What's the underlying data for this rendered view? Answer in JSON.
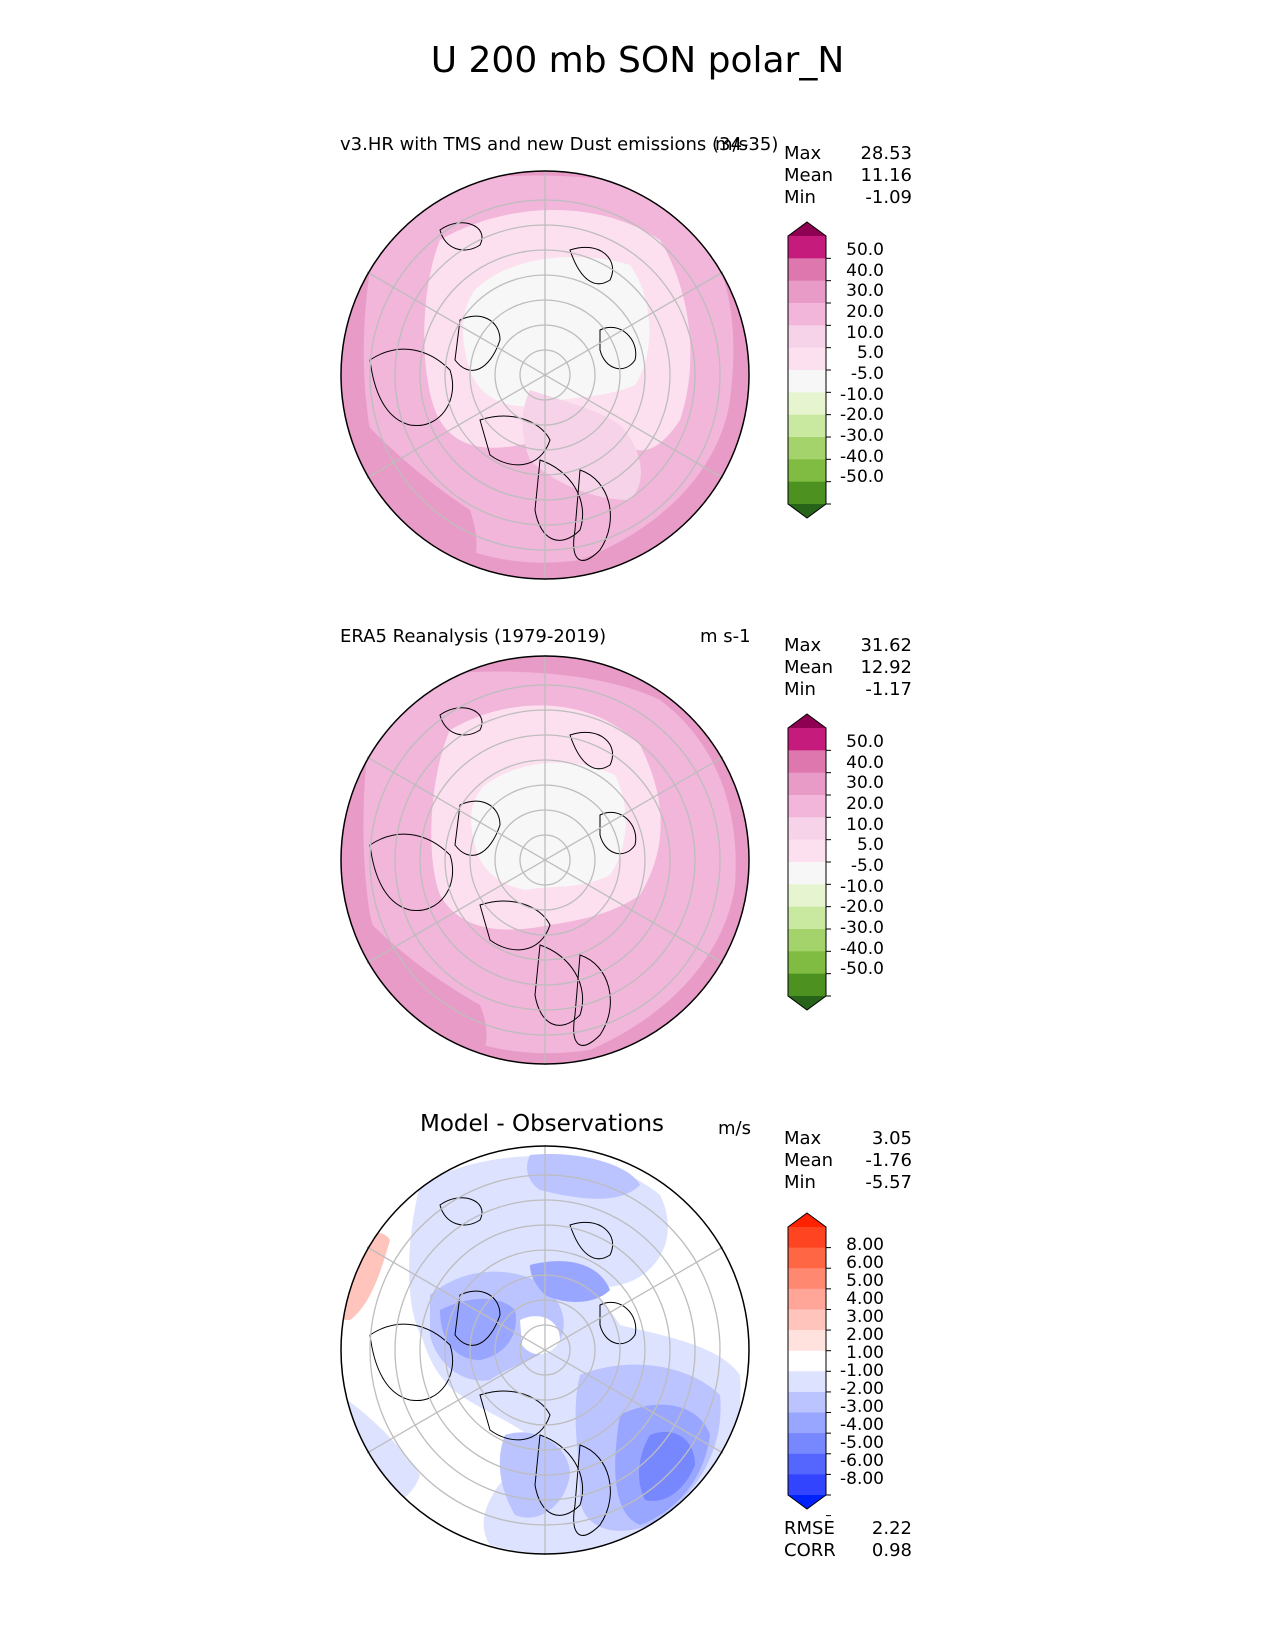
{
  "title": "U 200 mb SON polar_N",
  "panels": [
    {
      "id": "test",
      "left_title": "v3.HR with TMS and new Dust emissions (34-35)",
      "units": "m/s",
      "stats": [
        {
          "label": "Max",
          "value": "28.53"
        },
        {
          "label": "Mean",
          "value": "11.16"
        },
        {
          "label": "Min",
          "value": "-1.09"
        }
      ],
      "colorbar": {
        "ticks": [
          "50.0",
          "40.0",
          "30.0",
          "20.0",
          "10.0",
          "5.0",
          "-5.0",
          "-10.0",
          "-20.0",
          "-30.0",
          "-40.0",
          "-50.0"
        ],
        "colors": [
          "#8e0152",
          "#c51b7d",
          "#de77ae",
          "#e99bc7",
          "#f1b6da",
          "#f6d3e8",
          "#fde0ef",
          "#f7f7f7",
          "#e6f5d0",
          "#c9e8a0",
          "#a3d36a",
          "#7fbc41",
          "#4d9221",
          "#276419"
        ]
      }
    },
    {
      "id": "ref",
      "left_title": "ERA5 Reanalysis (1979-2019)",
      "units": "m s-1",
      "stats": [
        {
          "label": "Max",
          "value": "31.62"
        },
        {
          "label": "Mean",
          "value": "12.92"
        },
        {
          "label": "Min",
          "value": "-1.17"
        }
      ],
      "colorbar": {
        "ticks": [
          "50.0",
          "40.0",
          "30.0",
          "20.0",
          "10.0",
          "5.0",
          "-5.0",
          "-10.0",
          "-20.0",
          "-30.0",
          "-40.0",
          "-50.0"
        ],
        "colors": [
          "#8e0152",
          "#c51b7d",
          "#de77ae",
          "#e99bc7",
          "#f1b6da",
          "#f6d3e8",
          "#fde0ef",
          "#f7f7f7",
          "#e6f5d0",
          "#c9e8a0",
          "#a3d36a",
          "#7fbc41",
          "#4d9221",
          "#276419"
        ]
      }
    },
    {
      "id": "diff",
      "center_title": "Model - Observations",
      "units": "m/s",
      "stats": [
        {
          "label": "Max",
          "value": "3.05"
        },
        {
          "label": "Mean",
          "value": "-1.76"
        },
        {
          "label": "Min",
          "value": "-5.57"
        }
      ],
      "extra_stats": [
        {
          "label": "RMSE",
          "value": "2.22"
        },
        {
          "label": "CORR",
          "value": "0.98"
        }
      ],
      "colorbar": {
        "ticks": [
          "8.00",
          "6.00",
          "5.00",
          "4.00",
          "3.00",
          "2.00",
          "1.00",
          "-1.00",
          "-2.00",
          "-3.00",
          "-4.00",
          "-5.00",
          "-6.00",
          "-8.00"
        ],
        "colors": [
          "#ff2200",
          "#ff4422",
          "#ff6644",
          "#ff8870",
          "#ffa699",
          "#ffc4bb",
          "#ffe2dd",
          "#ffffff",
          "#dde2ff",
          "#bbc4ff",
          "#99a6ff",
          "#7788ff",
          "#5566ff",
          "#3344ff",
          "#0022ff"
        ]
      }
    }
  ]
}
